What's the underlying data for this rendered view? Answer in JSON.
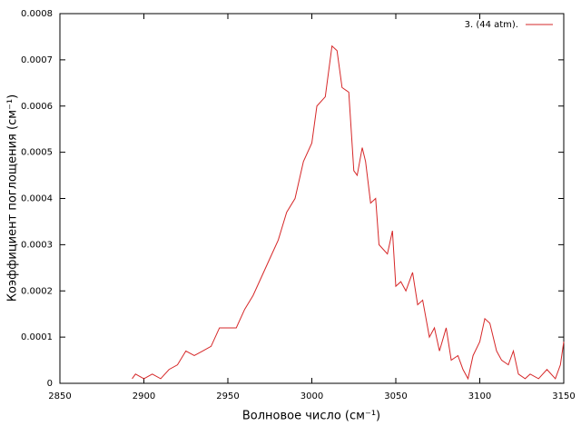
{
  "chart_data": {
    "type": "line",
    "x_label": "Волновое число (см⁻¹)",
    "y_label": "Коэффициент поглощения (см⁻¹)",
    "xlim": [
      2850,
      3150
    ],
    "xticks": [
      2850,
      2900,
      2950,
      3000,
      3050,
      3100,
      3150
    ],
    "ylim": [
      0,
      0.0008
    ],
    "yticks": [
      0,
      0.0001,
      0.0002,
      0.0003,
      0.0004,
      0.0005,
      0.0006,
      0.0007,
      0.0008
    ],
    "legend": "upper right",
    "series": [
      {
        "name": "3. (44 atm).",
        "color": "#d62728",
        "x": [
          2893,
          2895,
          2900,
          2905,
          2910,
          2915,
          2920,
          2925,
          2930,
          2935,
          2940,
          2945,
          2950,
          2955,
          2960,
          2965,
          2970,
          2975,
          2980,
          2985,
          2990,
          2995,
          3000,
          3003,
          3008,
          3012,
          3015,
          3018,
          3022,
          3025,
          3027,
          3030,
          3032,
          3035,
          3038,
          3040,
          3045,
          3048,
          3050,
          3053,
          3056,
          3060,
          3063,
          3066,
          3070,
          3073,
          3076,
          3080,
          3083,
          3087,
          3090,
          3093,
          3096,
          3100,
          3103,
          3106,
          3110,
          3113,
          3117,
          3120,
          3123,
          3127,
          3130,
          3135,
          3140,
          3145,
          3148,
          3150
        ],
        "values": [
          1e-05,
          2e-05,
          1e-05,
          2e-05,
          1e-05,
          3e-05,
          4e-05,
          7e-05,
          6e-05,
          7e-05,
          8e-05,
          0.00012,
          0.00012,
          0.00012,
          0.00016,
          0.00019,
          0.00023,
          0.00027,
          0.00031,
          0.00037,
          0.0004,
          0.00048,
          0.00052,
          0.0006,
          0.00062,
          0.00073,
          0.00072,
          0.00064,
          0.00063,
          0.00046,
          0.00045,
          0.00051,
          0.00048,
          0.00039,
          0.0004,
          0.0003,
          0.00028,
          0.00033,
          0.00021,
          0.00022,
          0.0002,
          0.00024,
          0.00017,
          0.00018,
          0.0001,
          0.00012,
          7e-05,
          0.00012,
          5e-05,
          6e-05,
          3e-05,
          1e-05,
          6e-05,
          9e-05,
          0.00014,
          0.00013,
          7e-05,
          5e-05,
          4e-05,
          7e-05,
          2e-05,
          1e-05,
          2e-05,
          1e-05,
          3e-05,
          1e-05,
          4e-05,
          9e-05
        ]
      }
    ]
  }
}
